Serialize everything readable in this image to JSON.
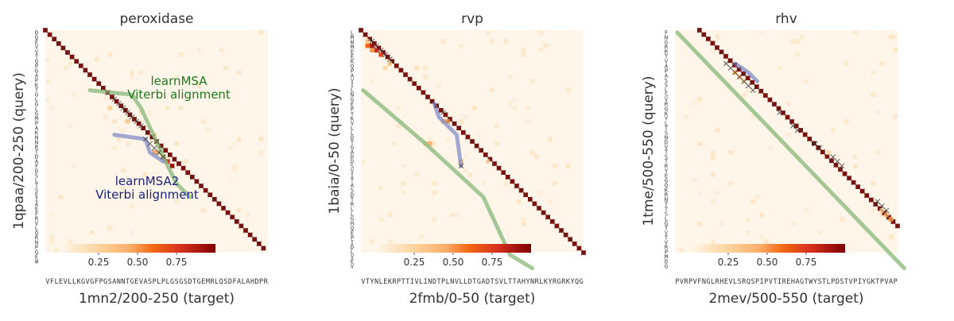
{
  "chart_data": [
    {
      "type": "heatmap",
      "title": "peroxidase",
      "xlabel": "1mn2/200-250 (target)",
      "ylabel": "1qpaa/200-250 (query)",
      "x_sequence": "VFLEVLLKGVGFPGSANNTGEVASPLPLGSGSDTGEMRLQSDFALAHDPR",
      "y_sequence": "DQEVVTQPGAPKTGLGLGMPAKNNRTDAFDSLTSEIAEFRVLQRNPGEW",
      "colorbar": {
        "ticks": [
          "0.25",
          "0.50",
          "0.75"
        ],
        "range": [
          0,
          1
        ]
      },
      "annotations": [
        {
          "text": "learnMSA",
          "color": "#1e7a1e"
        },
        {
          "text": "Viterbi alignment",
          "color": "#1e7a1e"
        },
        {
          "text": "learnMSA2",
          "color": "#1a237e"
        },
        {
          "text": "Viterbi alignment",
          "color": "#1a237e"
        }
      ],
      "diagonal": {
        "x0": 0,
        "y0": 0,
        "x1": 49,
        "y1": 49
      },
      "learnmsa_path": [
        [
          9.5,
          13
        ],
        [
          19,
          14
        ],
        [
          21,
          17
        ],
        [
          27,
          30
        ],
        [
          29,
          34
        ],
        [
          32,
          37
        ]
      ],
      "learnmsa2_path": [
        [
          15,
          23
        ],
        [
          22,
          24
        ],
        [
          23,
          27
        ],
        [
          26,
          29
        ]
      ],
      "crosses": [
        [
          15,
          15
        ],
        [
          16,
          16
        ],
        [
          17,
          17
        ],
        [
          18,
          18
        ],
        [
          19,
          19
        ],
        [
          20,
          20
        ],
        [
          21,
          21
        ],
        [
          22,
          24
        ],
        [
          23,
          25
        ],
        [
          24,
          26
        ],
        [
          25,
          27
        ],
        [
          26,
          28
        ]
      ],
      "hot_cells": [
        [
          26,
          28,
          0.6
        ],
        [
          27,
          29,
          0.8
        ],
        [
          28,
          30,
          0.95
        ],
        [
          24,
          27,
          0.45
        ],
        [
          25,
          27,
          0.3
        ],
        [
          18,
          20,
          0.3
        ],
        [
          14,
          17,
          0.25
        ],
        [
          24,
          23,
          0.2
        ]
      ]
    },
    {
      "type": "heatmap",
      "title": "rvp",
      "xlabel": "2fmb/0-50 (target)",
      "ylabel": "1baia/0-50 (query)",
      "x_sequence": "VTYNLEKRPTTIVLINDTPLNVLLDTGADTSVLTTAHYNRLKYRGRKYQG",
      "y_sequence": "LMWMEEKQPAVILNGEPYKVLLDTGADDSVITASDTRLLGHQEPIDLVEV",
      "colorbar": {
        "ticks": [
          "0.25",
          "0.50",
          "0.75"
        ],
        "range": [
          0,
          1
        ]
      },
      "annotations": [],
      "diagonal": {
        "x0": 0,
        "y0": 0,
        "x1": 50,
        "y1": 50
      },
      "learnmsa_path": [
        [
          0,
          13
        ],
        [
          14,
          25
        ],
        [
          27,
          37
        ],
        [
          33,
          50
        ],
        [
          38,
          53
        ]
      ],
      "learnmsa2_path": [
        [
          16,
          16
        ],
        [
          17,
          19
        ],
        [
          21,
          23
        ],
        [
          22,
          30
        ]
      ],
      "crosses": [
        [
          2,
          2
        ],
        [
          3,
          3
        ],
        [
          4,
          4
        ],
        [
          5,
          5
        ],
        [
          6,
          6
        ],
        [
          18,
          18
        ],
        [
          22,
          30
        ]
      ],
      "hot_cells": [
        [
          1,
          3,
          0.6
        ],
        [
          2,
          3,
          0.9
        ],
        [
          3,
          4,
          0.8
        ],
        [
          4,
          5,
          0.7
        ],
        [
          2,
          4,
          0.5
        ],
        [
          1,
          2,
          0.3
        ],
        [
          18,
          20,
          0.4
        ],
        [
          19,
          20,
          0.5
        ],
        [
          15,
          25,
          0.4
        ],
        [
          22,
          29,
          0.3
        ],
        [
          6,
          7,
          0.3
        ],
        [
          5,
          8,
          0.2
        ],
        [
          28,
          29,
          0.2
        ],
        [
          12,
          8,
          0.15
        ],
        [
          14,
          25,
          0.3
        ]
      ]
    },
    {
      "type": "heatmap",
      "title": "rhv",
      "xlabel": "2mev/500-550 (target)",
      "ylabel": "1tme/500-550 (query)",
      "x_sequence": "PVRPVFNGLRHEVLSRQSPIPVTIREHAGTWYSTLPDSTVPIYGKTPVAP",
      "y_sequence": "FNGRRTVAPASSLSVRGKYLTSNDVTSTRYEGQKRNTTSLGTVTVRPMDG",
      "colorbar": {
        "ticks": [
          "0.25",
          "0.50",
          "0.75"
        ],
        "range": [
          0,
          1
        ]
      },
      "annotations": [],
      "diagonal": {
        "x0": 5.5,
        "y0": 0,
        "x1": 50,
        "y1": 44
      },
      "learnmsa_path": [
        [
          0,
          0
        ],
        [
          51,
          53
        ]
      ],
      "learnmsa2_path": [
        [
          13,
          7
        ],
        [
          16,
          9
        ],
        [
          18,
          11
        ]
      ],
      "crosses": [
        [
          11,
          7
        ],
        [
          12,
          8
        ],
        [
          13,
          9
        ],
        [
          14,
          10
        ],
        [
          15,
          11
        ],
        [
          16,
          12
        ],
        [
          17,
          13
        ],
        [
          23,
          18
        ],
        [
          26,
          21
        ],
        [
          27,
          22
        ],
        [
          31,
          25
        ],
        [
          32,
          26
        ],
        [
          35,
          28
        ],
        [
          36,
          29
        ],
        [
          37,
          30
        ],
        [
          45,
          38
        ],
        [
          46,
          39
        ],
        [
          47,
          40
        ]
      ],
      "hot_cells": [
        [
          13,
          9,
          0.4
        ],
        [
          14,
          10,
          0.35
        ],
        [
          15,
          11,
          0.3
        ],
        [
          47,
          41,
          0.45
        ],
        [
          48,
          42,
          0.5
        ],
        [
          46,
          40,
          0.3
        ],
        [
          34,
          27,
          0.2
        ]
      ]
    }
  ]
}
